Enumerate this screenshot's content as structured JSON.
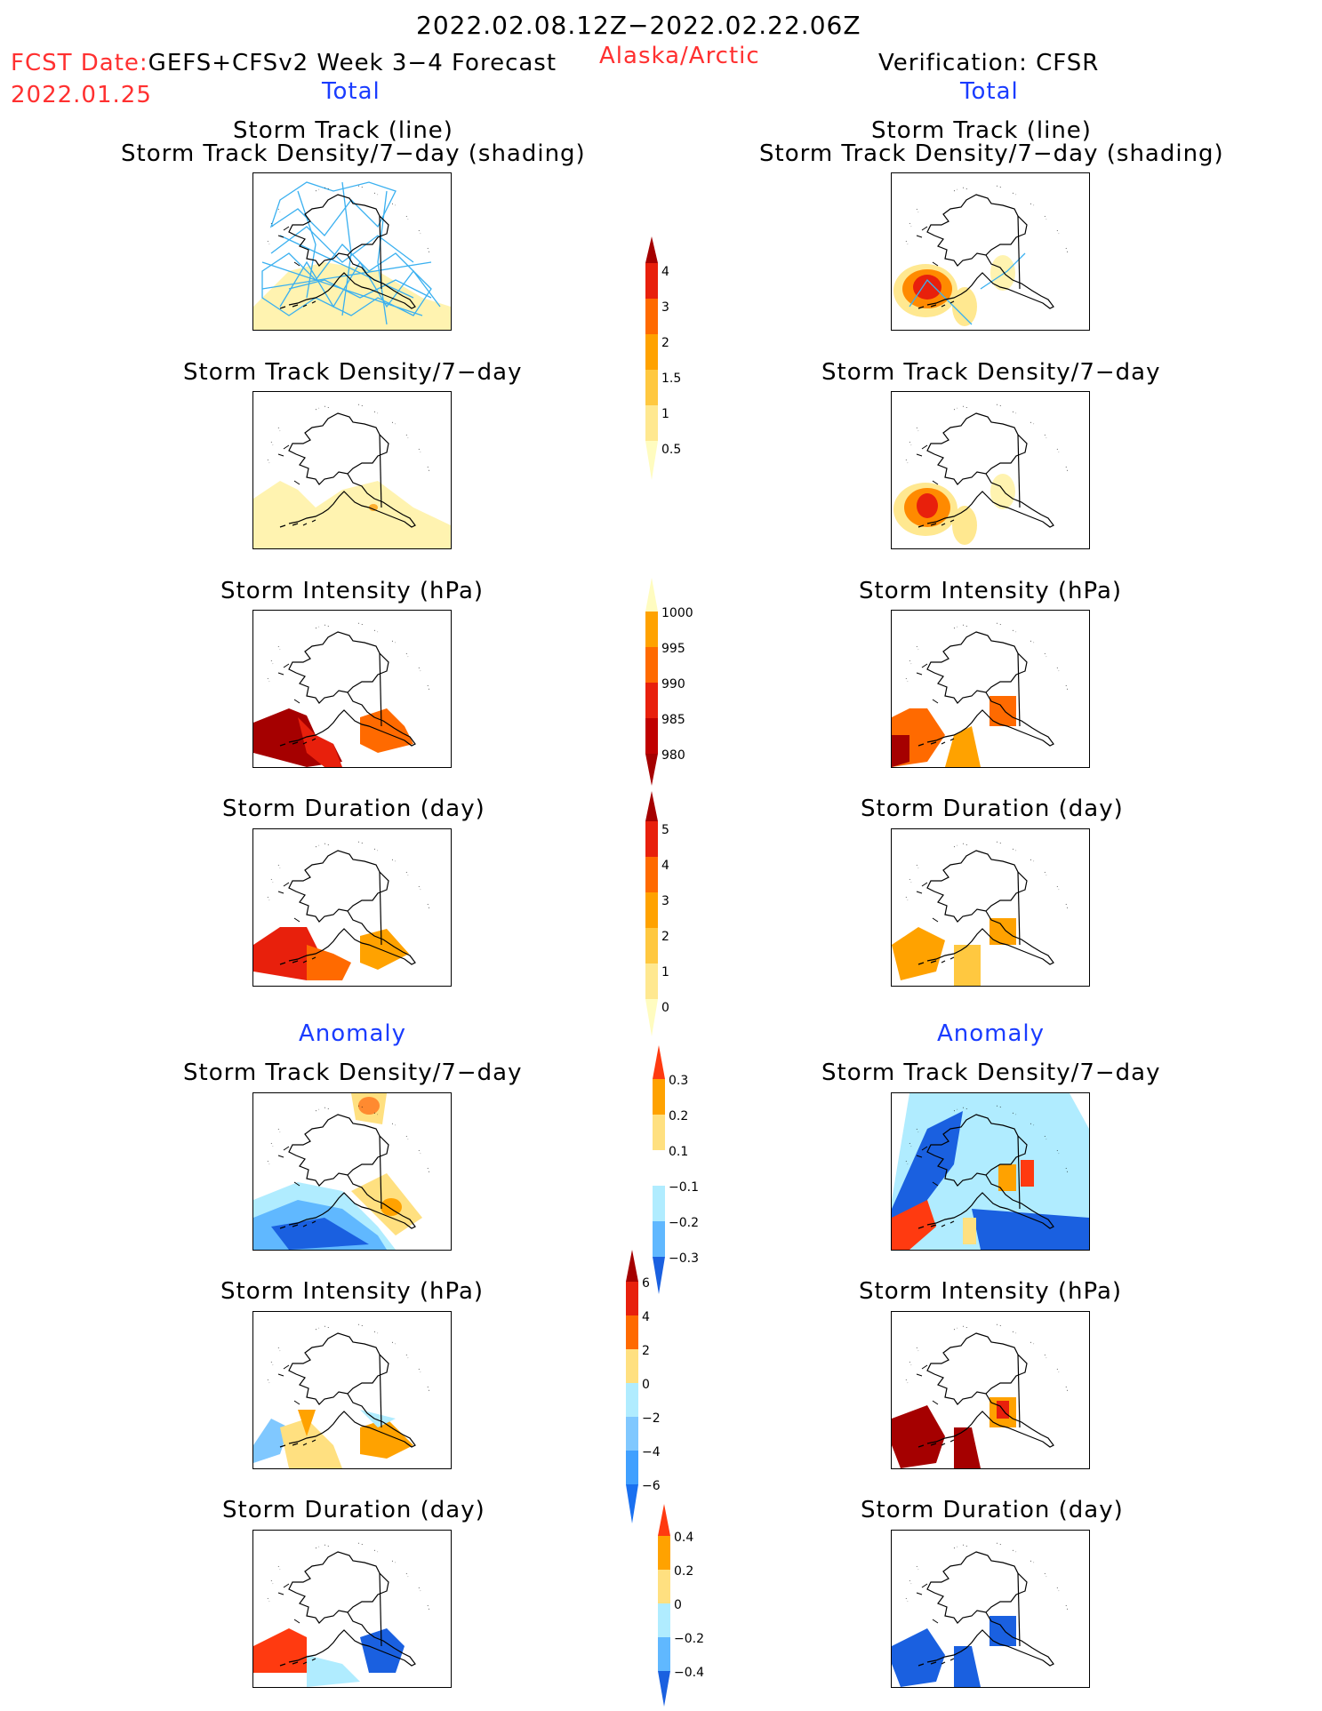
{
  "header": {
    "period": "2022.02.08.12Z−2022.02.22.06Z",
    "fcst_label": "FCST Date:",
    "fcst_model": "GEFS+CFSv2 Week 3−4 Forecast",
    "fcst_date": "2022.01.25",
    "region": "Alaska/Arctic",
    "verification": "Verification: CFSR",
    "total_left": "Total",
    "total_right": "Total",
    "anomaly_left": "Anomaly",
    "anomaly_right": "Anomaly"
  },
  "panels": {
    "track_line": "Storm Track (line)",
    "track_shading": "Storm Track Density/7−day (shading)",
    "density": "Storm Track Density/7−day",
    "intensity": "Storm Intensity (hPa)",
    "duration": "Storm Duration (day)"
  },
  "colorbars": {
    "density": {
      "ticks": [
        "4",
        "3",
        "2",
        "1.5",
        "1",
        "0.5"
      ],
      "colors": [
        "#a50000",
        "#e8200c",
        "#ff6a00",
        "#ffa200",
        "#ffc840",
        "#ffe890",
        "#fffcc0"
      ]
    },
    "intensity": {
      "ticks": [
        "1000",
        "995",
        "990",
        "985",
        "980"
      ],
      "colors": [
        "#fffcc0",
        "#ffa200",
        "#ff6a00",
        "#e8200c",
        "#a50000"
      ]
    },
    "duration": {
      "ticks": [
        "5",
        "4",
        "3",
        "2",
        "1",
        "0"
      ],
      "colors": [
        "#a50000",
        "#e8200c",
        "#ff6a00",
        "#ffa200",
        "#ffc840",
        "#ffe890",
        "#fffcc0"
      ]
    },
    "anom_density": {
      "ticks": [
        "0.3",
        "0.2",
        "0.1",
        "−0.1",
        "−0.2",
        "−0.3"
      ],
      "colors": [
        "#ff3a10",
        "#ffa200",
        "#ffe080",
        "#ffffff",
        "#b0ecff",
        "#60b8ff",
        "#1a60e0"
      ]
    },
    "anom_intensity": {
      "ticks": [
        "6",
        "4",
        "2",
        "0",
        "−2",
        "−4",
        "−6"
      ],
      "colors": [
        "#e8200c",
        "#ff6a00",
        "#ffa200",
        "#ffe080",
        "#b0ecff",
        "#80c8ff",
        "#40a0ff",
        "#1a70f0"
      ]
    },
    "anom_duration": {
      "ticks": [
        "0.4",
        "0.2",
        "0",
        "−0.2",
        "−0.4"
      ],
      "colors": [
        "#ff3a10",
        "#ffa200",
        "#ffe080",
        "#b0ecff",
        "#60b8ff",
        "#1a60e0"
      ]
    }
  }
}
